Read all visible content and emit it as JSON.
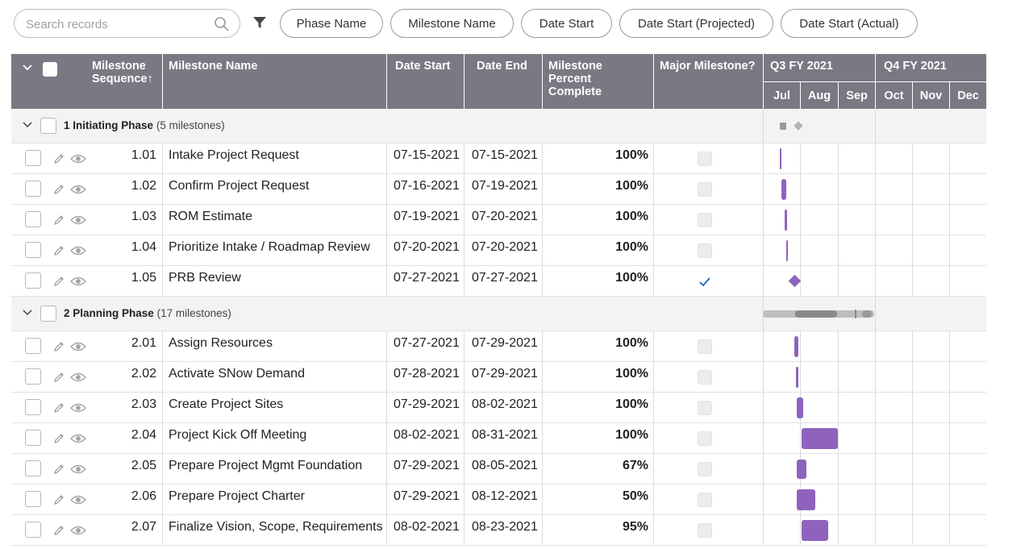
{
  "toolbar": {
    "search_placeholder": "Search records",
    "chips": [
      "Phase Name",
      "Milestone Name",
      "Date Start",
      "Date Start (Projected)",
      "Date Start (Actual)"
    ]
  },
  "header": {
    "seq": "Milestone Sequence",
    "seq_sort": "↑",
    "name": "Milestone Name",
    "start": "Date Start",
    "end": "Date End",
    "pct": "Milestone Percent Complete",
    "major": "Major Milestone?",
    "q3": "Q3 FY 2021",
    "q4": "Q4 FY 2021",
    "months": [
      "Jul",
      "Aug",
      "Sep",
      "Oct",
      "Nov",
      "Dec"
    ]
  },
  "groups": [
    {
      "num": "1",
      "name": "Initiating Phase",
      "count": "(5 milestones)",
      "rows": [
        {
          "seq": "1.01",
          "name": "Intake Project Request",
          "start": "07-15-2021",
          "end": "07-15-2021",
          "pct": "100%",
          "major": false
        },
        {
          "seq": "1.02",
          "name": "Confirm Project Request",
          "start": "07-16-2021",
          "end": "07-19-2021",
          "pct": "100%",
          "major": false
        },
        {
          "seq": "1.03",
          "name": "ROM Estimate",
          "start": "07-19-2021",
          "end": "07-20-2021",
          "pct": "100%",
          "major": false
        },
        {
          "seq": "1.04",
          "name": "Prioritize Intake / Roadmap Review",
          "start": "07-20-2021",
          "end": "07-20-2021",
          "pct": "100%",
          "major": false
        },
        {
          "seq": "1.05",
          "name": "PRB Review",
          "start": "07-27-2021",
          "end": "07-27-2021",
          "pct": "100%",
          "major": true
        }
      ]
    },
    {
      "num": "2",
      "name": "Planning Phase",
      "count": "(17 milestones)",
      "rows": [
        {
          "seq": "2.01",
          "name": "Assign Resources",
          "start": "07-27-2021",
          "end": "07-29-2021",
          "pct": "100%",
          "major": false
        },
        {
          "seq": "2.02",
          "name": "Activate SNow Demand",
          "start": "07-28-2021",
          "end": "07-29-2021",
          "pct": "100%",
          "major": false
        },
        {
          "seq": "2.03",
          "name": "Create Project Sites",
          "start": "07-29-2021",
          "end": "08-02-2021",
          "pct": "100%",
          "major": false
        },
        {
          "seq": "2.04",
          "name": "Project Kick Off Meeting",
          "start": "08-02-2021",
          "end": "08-31-2021",
          "pct": "100%",
          "major": false
        },
        {
          "seq": "2.05",
          "name": "Prepare Project Mgmt Foundation",
          "start": "07-29-2021",
          "end": "08-05-2021",
          "pct": "67%",
          "major": false
        },
        {
          "seq": "2.06",
          "name": "Prepare Project Charter",
          "start": "07-29-2021",
          "end": "08-12-2021",
          "pct": "50%",
          "major": false
        },
        {
          "seq": "2.07",
          "name": "Finalize Vision, Scope, Requirements",
          "start": "08-02-2021",
          "end": "08-23-2021",
          "pct": "95%",
          "major": false
        }
      ]
    }
  ],
  "colors": {
    "header_bg": "#7b7883",
    "gantt_bar": "#8f63bd",
    "group_bg": "#f3f3f5",
    "check_blue": "#1565c0"
  }
}
